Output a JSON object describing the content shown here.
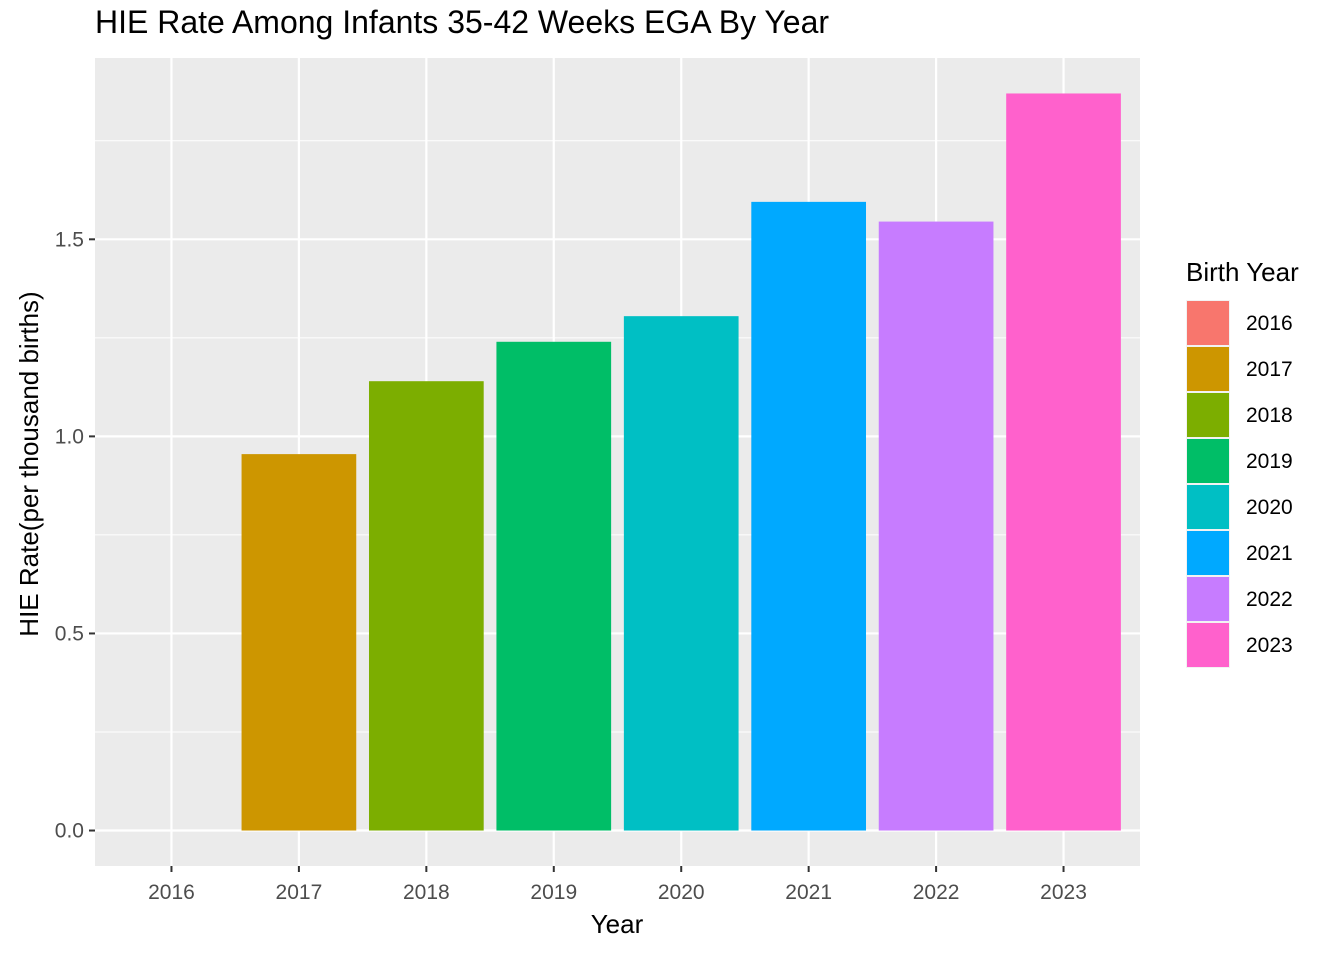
{
  "chart_data": {
    "type": "bar",
    "title": "HIE Rate Among Infants 35-42 Weeks EGA By Year",
    "xlabel": "Year",
    "ylabel": "HIE Rate(per thousand births)",
    "categories": [
      "2016",
      "2017",
      "2018",
      "2019",
      "2020",
      "2021",
      "2022",
      "2023"
    ],
    "values": [
      0.0,
      0.955,
      1.14,
      1.24,
      1.305,
      1.595,
      1.545,
      1.87
    ],
    "ylim": [
      -0.09,
      1.96
    ],
    "yticks": [
      0.0,
      0.5,
      1.0,
      1.5
    ],
    "ytick_labels": [
      "0.0",
      "0.5",
      "1.0",
      "1.5"
    ],
    "ytick_minor": [
      0.25,
      0.75,
      1.25,
      1.75
    ],
    "grid": true,
    "panel_background": "#ebebeb",
    "grid_color": "#ffffff",
    "legend": {
      "title": "Birth Year",
      "position": "right",
      "entries": [
        "2016",
        "2017",
        "2018",
        "2019",
        "2020",
        "2021",
        "2022",
        "2023"
      ]
    },
    "colors": [
      "#f8766d",
      "#cd9600",
      "#7cae00",
      "#00be67",
      "#00bfc4",
      "#00a9ff",
      "#c77cff",
      "#ff61cc"
    ]
  }
}
